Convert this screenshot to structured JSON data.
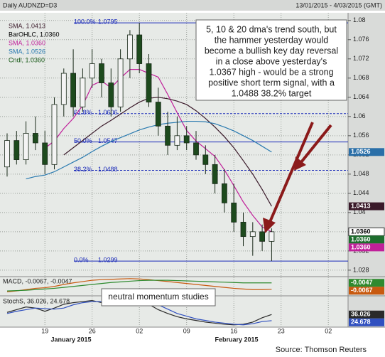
{
  "chart_data": [
    {
      "type": "candlestick",
      "title": "Daily AUDNZD=D3",
      "subtitle": "13/01/2015 - 4/03/2015 (GMT)",
      "categories": [
        null,
        null,
        null,
        null,
        "19",
        null,
        null,
        null,
        null,
        "26",
        null,
        null,
        null,
        null,
        "02",
        null,
        null,
        null,
        null,
        "09",
        null,
        null,
        null,
        null,
        "16",
        null,
        null,
        null,
        null,
        "23",
        null,
        null,
        null,
        null,
        "02",
        null,
        null
      ],
      "month_labels": [
        "January 2015",
        "February 2015"
      ],
      "ohlc": {
        "open": [
          1.0495,
          1.055,
          1.051,
          1.0565,
          1.0545,
          1.05,
          1.0625,
          1.069,
          1.062,
          1.068,
          1.071,
          1.067,
          1.062,
          1.072,
          1.077,
          1.071,
          1.063,
          1.058,
          1.054,
          1.056,
          1.0545,
          1.052,
          1.05,
          1.046,
          1.042,
          1.038,
          1.035,
          1.036,
          1.034,
          null,
          null,
          null,
          null,
          null,
          null,
          null,
          null
        ],
        "high": [
          1.0565,
          1.057,
          1.059,
          1.06,
          1.057,
          1.064,
          1.07,
          1.074,
          1.07,
          1.074,
          1.072,
          1.07,
          1.074,
          1.078,
          1.0795,
          1.073,
          1.066,
          1.061,
          1.06,
          1.058,
          1.057,
          1.054,
          1.052,
          1.049,
          1.046,
          1.04,
          1.038,
          1.0375,
          1.0367,
          null,
          null,
          null,
          null,
          null,
          null,
          null,
          null
        ],
        "low": [
          1.0475,
          1.05,
          1.05,
          1.053,
          1.048,
          1.049,
          1.06,
          1.06,
          1.061,
          1.066,
          1.064,
          1.06,
          1.061,
          1.068,
          1.069,
          1.062,
          1.056,
          1.052,
          1.053,
          1.053,
          1.051,
          1.048,
          1.044,
          1.04,
          1.036,
          1.033,
          1.031,
          1.032,
          1.0299,
          null,
          null,
          null,
          null,
          null,
          null,
          null,
          null
        ],
        "close": [
          1.055,
          1.051,
          1.0565,
          1.0545,
          1.05,
          1.0625,
          1.069,
          1.062,
          1.068,
          1.071,
          1.067,
          1.062,
          1.072,
          1.077,
          1.071,
          1.063,
          1.058,
          1.054,
          1.056,
          1.0545,
          1.052,
          1.05,
          1.046,
          1.042,
          1.038,
          1.035,
          1.036,
          1.034,
          1.036,
          null,
          null,
          null,
          null,
          null,
          null,
          null,
          null
        ]
      },
      "up_color": "#f4f4f4",
      "down_color": "#1d4a1d",
      "legend": [
        {
          "name": "SMA, 1.0413",
          "color": "#3a1a2a"
        },
        {
          "name": "BarOHLC, 1.0360",
          "color": "#000000"
        },
        {
          "name": "SMA, 1.0360",
          "color": "#c0209a"
        },
        {
          "name": "SMA, 1.0526",
          "color": "#2a7ab0"
        },
        {
          "name": "Cndl, 1.0360",
          "color": "#1e5e1e"
        }
      ],
      "series": [
        {
          "color": "#c0209a",
          "values": [
            null,
            null,
            null,
            null,
            1.0534,
            1.0549,
            1.0575,
            1.0596,
            1.0623,
            1.0665,
            1.0674,
            1.066,
            1.068,
            1.0698,
            1.0698,
            1.069,
            1.0682,
            1.0646,
            1.0608,
            1.0571,
            1.0549,
            1.0533,
            1.0517,
            1.0489,
            1.0456,
            1.0422,
            1.0394,
            1.037,
            1.036,
            null,
            null,
            null,
            null,
            null,
            null,
            null,
            null
          ]
        },
        {
          "color": "#3a1a2a",
          "values": [
            null,
            null,
            null,
            null,
            null,
            null,
            1.052,
            1.0535,
            1.055,
            1.0565,
            1.058,
            1.0592,
            1.0605,
            1.0618,
            1.063,
            1.0638,
            1.064,
            1.0637,
            1.0632,
            1.0625,
            1.0612,
            1.0596,
            1.0578,
            1.0558,
            1.0535,
            1.0508,
            1.048,
            1.0448,
            1.0413,
            null,
            null,
            null,
            null,
            null,
            null,
            null,
            null
          ]
        },
        {
          "color": "#2a7ab0",
          "values": [
            null,
            null,
            1.047,
            1.0475,
            1.0478,
            1.0485,
            1.0495,
            1.0505,
            1.0515,
            1.0527,
            1.0538,
            1.0548,
            1.0556,
            1.0564,
            1.0572,
            1.0578,
            1.0583,
            1.0586,
            1.0588,
            1.059,
            1.059,
            1.0589,
            1.0585,
            1.0578,
            1.057,
            1.056,
            1.055,
            1.0538,
            1.0526,
            null,
            null,
            null,
            null,
            null,
            null,
            null,
            null
          ]
        }
      ],
      "ylim": [
        1.0268,
        1.0813
      ],
      "yticks": [
        1.028,
        1.032,
        1.036,
        1.04,
        1.044,
        1.048,
        1.052,
        1.056,
        1.06,
        1.064,
        1.068,
        1.072,
        1.076,
        1.08
      ],
      "grid": true,
      "fib_levels": [
        {
          "label": "100.0%",
          "value": 1.0795,
          "dashed": false
        },
        {
          "label": "61.8%",
          "value": 1.0606,
          "dashed": true
        },
        {
          "label": "50.0%",
          "value": 1.0547,
          "dashed": false
        },
        {
          "label": "38.2%",
          "value": 1.0488,
          "dashed": true
        },
        {
          "label": "0.0%",
          "value": 1.0299,
          "dashed": false
        }
      ],
      "fib_color": "#1a2ab8",
      "annotation": [
        "5, 10 & 20 dma's trend south, but",
        "the hammer yesterday would",
        "become a bullish key day reversal",
        "in a close above yesterday's",
        "1.0367 high - would be a strong",
        "positive short term signal, with a",
        "1.0488 38.2% target"
      ],
      "price_tags": [
        {
          "value": 1.0526,
          "color": "#2a6fa8"
        },
        {
          "value": 1.0413,
          "color": "#3a1a2a"
        },
        {
          "value": 1.036,
          "label": "1.0360",
          "color": "#ffffff"
        },
        {
          "value": 1.036,
          "label": "1.0360",
          "color": "#1e6e2e"
        },
        {
          "value": 1.036,
          "label": "1.0360",
          "color": "#c0209a"
        }
      ]
    },
    {
      "type": "line",
      "title": "MACD, -0.0067, -0.0047",
      "series": [
        {
          "color": "#c85a10",
          "values": [
            -0.0075,
            -0.0072,
            -0.0068,
            -0.0064,
            -0.0062,
            -0.0058,
            -0.0052,
            -0.0047,
            -0.0043,
            -0.0039,
            -0.0037,
            -0.0036,
            -0.0035,
            -0.0034,
            -0.0035,
            -0.0037,
            -0.004,
            -0.0043,
            -0.0046,
            -0.0049,
            -0.0052,
            -0.0055,
            -0.0058,
            -0.0061,
            -0.0064,
            -0.0066,
            -0.0068,
            -0.0068,
            -0.0067,
            null,
            null,
            null,
            null,
            null,
            null,
            null,
            null
          ]
        },
        {
          "color": "#2f8a2f",
          "values": [
            -0.0072,
            -0.0071,
            -0.007,
            -0.0068,
            -0.0066,
            -0.0064,
            -0.0061,
            -0.0058,
            -0.0055,
            -0.0052,
            -0.0049,
            -0.0046,
            -0.0044,
            -0.0042,
            -0.004,
            -0.0039,
            -0.0039,
            -0.0039,
            -0.004,
            -0.0041,
            -0.0042,
            -0.0043,
            -0.0044,
            -0.0045,
            -0.0046,
            -0.0047,
            -0.0047,
            -0.0047,
            -0.0047,
            null,
            null,
            null,
            null,
            null,
            null,
            null,
            null
          ]
        }
      ],
      "ylim": [
        -0.0085,
        -0.003
      ],
      "annotation": "neutral momentum studies",
      "price_tags": [
        {
          "value": -0.0047,
          "color": "#2f8a2f"
        },
        {
          "value": -0.0067,
          "color": "#c85a10"
        }
      ]
    },
    {
      "type": "line",
      "title": "StochS, 36.026, 24.678",
      "series": [
        {
          "color": "#2a2a2a",
          "values": [
            40,
            45,
            50,
            48,
            42,
            48,
            55,
            58,
            60,
            62,
            58,
            55,
            60,
            64,
            62,
            55,
            45,
            38,
            32,
            28,
            25,
            22,
            20,
            18,
            17,
            18,
            22,
            30,
            36.026,
            null,
            null,
            null,
            null,
            null,
            null,
            null,
            null
          ]
        },
        {
          "color": "#3050c0",
          "values": [
            38,
            42,
            45,
            48,
            47,
            46,
            48,
            54,
            58,
            60,
            60,
            58,
            58,
            60,
            62,
            60,
            54,
            46,
            38,
            33,
            28,
            25,
            22,
            20,
            18,
            17,
            19,
            23,
            24.678,
            null,
            null,
            null,
            null,
            null,
            null,
            null,
            null
          ]
        }
      ],
      "ylim": [
        14,
        68
      ],
      "price_tags": [
        {
          "value": 36.026,
          "color": "#2a2a2a"
        },
        {
          "value": 24.678,
          "color": "#3050c0"
        }
      ]
    }
  ],
  "source": "Source: Thomson Reuters"
}
